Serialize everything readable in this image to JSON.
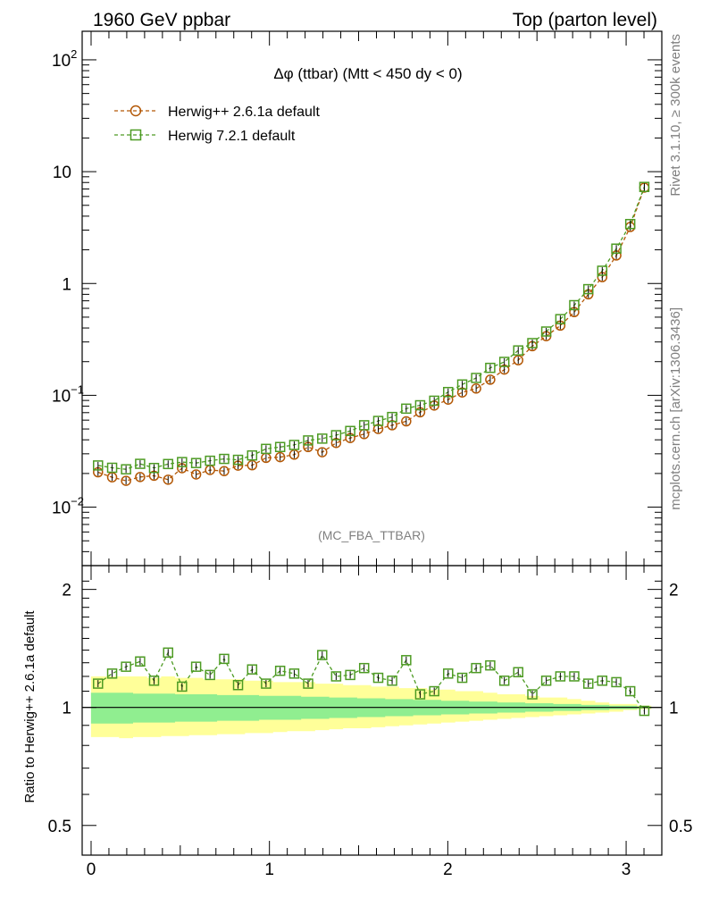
{
  "header": {
    "left": "1960 GeV ppbar",
    "right": "Top (parton level)"
  },
  "side_labels": {
    "rivet": "Rivet 3.1.10, ≥ 300k events",
    "mcplots": "mcplots.cern.ch [arXiv:1306.3436]"
  },
  "chart_data": [
    {
      "type": "line",
      "title": "Δφ (ttbar) (Mtt < 450 dy < 0)",
      "watermark": "(MC_FBA_TTBAR)",
      "xlabel": "",
      "ylabel": "",
      "y_scale": "log",
      "xlim": [
        -0.05,
        3.2
      ],
      "ylim": [
        0.003,
        180
      ],
      "grid": false,
      "legend_position": "top-left",
      "yticks": [
        {
          "value": 100,
          "base": "10",
          "exp": "2"
        },
        {
          "value": 10,
          "label": "10"
        },
        {
          "value": 1,
          "label": "1"
        },
        {
          "value": 0.1,
          "base": "10",
          "exp": "−1"
        },
        {
          "value": 0.01,
          "base": "10",
          "exp": "−2"
        }
      ],
      "x": [
        0.039,
        0.118,
        0.196,
        0.275,
        0.353,
        0.432,
        0.51,
        0.589,
        0.667,
        0.746,
        0.824,
        0.903,
        0.981,
        1.06,
        1.139,
        1.217,
        1.296,
        1.374,
        1.453,
        1.531,
        1.61,
        1.688,
        1.767,
        1.845,
        1.924,
        2.002,
        2.081,
        2.159,
        2.238,
        2.317,
        2.395,
        2.474,
        2.552,
        2.631,
        2.709,
        2.788,
        2.866,
        2.945,
        3.023,
        3.102
      ],
      "series": [
        {
          "name": "Herwig++ 2.6.1a default",
          "color": "#b35806",
          "marker": "circle",
          "values": [
            0.0205,
            0.0185,
            0.0172,
            0.0186,
            0.0191,
            0.0176,
            0.0223,
            0.0196,
            0.0215,
            0.021,
            0.0235,
            0.0237,
            0.0276,
            0.028,
            0.0295,
            0.0345,
            0.031,
            0.0375,
            0.0415,
            0.045,
            0.05,
            0.054,
            0.0585,
            0.0705,
            0.081,
            0.0915,
            0.106,
            0.115,
            0.138,
            0.17,
            0.206,
            0.275,
            0.338,
            0.42,
            0.555,
            0.8,
            1.14,
            1.78,
            3.2,
            7.2
          ]
        },
        {
          "name": "Herwig 7.2.1 default",
          "color": "#4d9b23",
          "marker": "square",
          "values": [
            0.0236,
            0.0225,
            0.0218,
            0.0244,
            0.0224,
            0.0243,
            0.0253,
            0.0248,
            0.026,
            0.027,
            0.0265,
            0.029,
            0.0332,
            0.0345,
            0.036,
            0.0395,
            0.041,
            0.044,
            0.048,
            0.054,
            0.059,
            0.064,
            0.076,
            0.0815,
            0.0895,
            0.107,
            0.125,
            0.143,
            0.176,
            0.199,
            0.252,
            0.293,
            0.372,
            0.48,
            0.64,
            0.89,
            1.3,
            2.05,
            3.4,
            7.3
          ]
        }
      ]
    },
    {
      "type": "line",
      "title": "",
      "ylabel": "Ratio to Herwig++ 2.6.1a default",
      "xlabel": "",
      "ylim": [
        0.42,
        2.3
      ],
      "xlim": [
        -0.05,
        3.2
      ],
      "reference": 1,
      "y_scale": "log",
      "yticks": [
        2,
        1,
        0.5
      ],
      "xticks": [
        0,
        1,
        2,
        3
      ],
      "uncertainty_bands": {
        "stat_color": "#90ee90",
        "total_color": "#ffff99",
        "stat_up": [
          1.09,
          1.09,
          1.09,
          1.085,
          1.085,
          1.085,
          1.08,
          1.08,
          1.08,
          1.075,
          1.075,
          1.075,
          1.07,
          1.07,
          1.07,
          1.065,
          1.065,
          1.06,
          1.06,
          1.055,
          1.055,
          1.05,
          1.05,
          1.045,
          1.045,
          1.04,
          1.04,
          1.035,
          1.035,
          1.03,
          1.03,
          1.025,
          1.025,
          1.02,
          1.02,
          1.015,
          1.015,
          1.01,
          1.01,
          1.005
        ],
        "stat_down": [
          0.91,
          0.91,
          0.91,
          0.915,
          0.915,
          0.915,
          0.92,
          0.92,
          0.92,
          0.925,
          0.925,
          0.925,
          0.93,
          0.93,
          0.93,
          0.935,
          0.935,
          0.94,
          0.94,
          0.945,
          0.945,
          0.95,
          0.95,
          0.955,
          0.955,
          0.96,
          0.96,
          0.965,
          0.965,
          0.97,
          0.97,
          0.975,
          0.975,
          0.98,
          0.98,
          0.985,
          0.985,
          0.99,
          0.99,
          0.995
        ],
        "total_up": [
          1.2,
          1.2,
          1.2,
          1.2,
          1.19,
          1.2,
          1.19,
          1.19,
          1.18,
          1.18,
          1.18,
          1.17,
          1.17,
          1.16,
          1.16,
          1.16,
          1.15,
          1.15,
          1.14,
          1.14,
          1.13,
          1.13,
          1.12,
          1.12,
          1.11,
          1.11,
          1.1,
          1.1,
          1.09,
          1.08,
          1.08,
          1.07,
          1.06,
          1.06,
          1.05,
          1.04,
          1.03,
          1.02,
          1.02,
          1.01
        ],
        "total_down": [
          0.84,
          0.84,
          0.835,
          0.84,
          0.84,
          0.845,
          0.845,
          0.85,
          0.85,
          0.855,
          0.855,
          0.86,
          0.86,
          0.865,
          0.87,
          0.87,
          0.875,
          0.88,
          0.885,
          0.885,
          0.89,
          0.895,
          0.9,
          0.905,
          0.91,
          0.915,
          0.92,
          0.925,
          0.93,
          0.935,
          0.94,
          0.945,
          0.95,
          0.955,
          0.96,
          0.965,
          0.97,
          0.975,
          0.985,
          0.99
        ]
      },
      "series": [
        {
          "name": "Herwig 7.2.1 default",
          "color": "#4d9b23",
          "marker": "square",
          "values": [
            1.15,
            1.22,
            1.27,
            1.31,
            1.17,
            1.38,
            1.13,
            1.27,
            1.21,
            1.33,
            1.14,
            1.25,
            1.15,
            1.24,
            1.22,
            1.15,
            1.36,
            1.2,
            1.21,
            1.26,
            1.19,
            1.17,
            1.32,
            1.08,
            1.1,
            1.22,
            1.19,
            1.26,
            1.28,
            1.17,
            1.23,
            1.08,
            1.17,
            1.2,
            1.2,
            1.15,
            1.17,
            1.16,
            1.1,
            0.98
          ]
        }
      ]
    }
  ]
}
